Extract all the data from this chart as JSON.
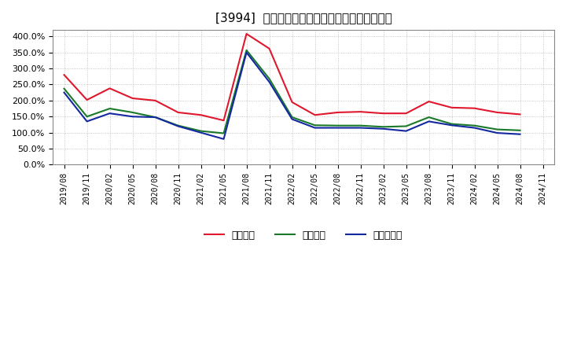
{
  "title": "[3994]  流動比率、当座比率、現預金比率の推移",
  "labels": [
    "2019/08",
    "2019/11",
    "2020/02",
    "2020/05",
    "2020/08",
    "2020/11",
    "2021/02",
    "2021/05",
    "2021/08",
    "2021/11",
    "2022/02",
    "2022/05",
    "2022/08",
    "2022/11",
    "2023/02",
    "2023/05",
    "2023/08",
    "2023/11",
    "2024/02",
    "2024/05",
    "2024/08",
    "2024/11"
  ],
  "ryudo": [
    280,
    202,
    238,
    207,
    200,
    163,
    155,
    138,
    408,
    362,
    195,
    155,
    163,
    165,
    160,
    160,
    197,
    178,
    176,
    163,
    157,
    null
  ],
  "toza": [
    237,
    150,
    175,
    163,
    148,
    122,
    105,
    98,
    357,
    268,
    148,
    123,
    122,
    122,
    118,
    120,
    148,
    127,
    122,
    110,
    107,
    null
  ],
  "genyo": [
    225,
    135,
    160,
    150,
    148,
    120,
    100,
    80,
    350,
    258,
    142,
    115,
    115,
    115,
    112,
    105,
    135,
    123,
    115,
    99,
    95,
    null
  ],
  "line_colors": {
    "ryudo": "#e0182d",
    "toza": "#1a7a2a",
    "genyo": "#1428a0"
  },
  "ylim": [
    0,
    420
  ],
  "yticks": [
    0,
    50,
    100,
    150,
    200,
    250,
    300,
    350,
    400
  ],
  "background_color": "#ffffff",
  "grid_color": "#b0b0b0",
  "legend_labels": [
    "流動比率",
    "当座比率",
    "現預金比率"
  ]
}
